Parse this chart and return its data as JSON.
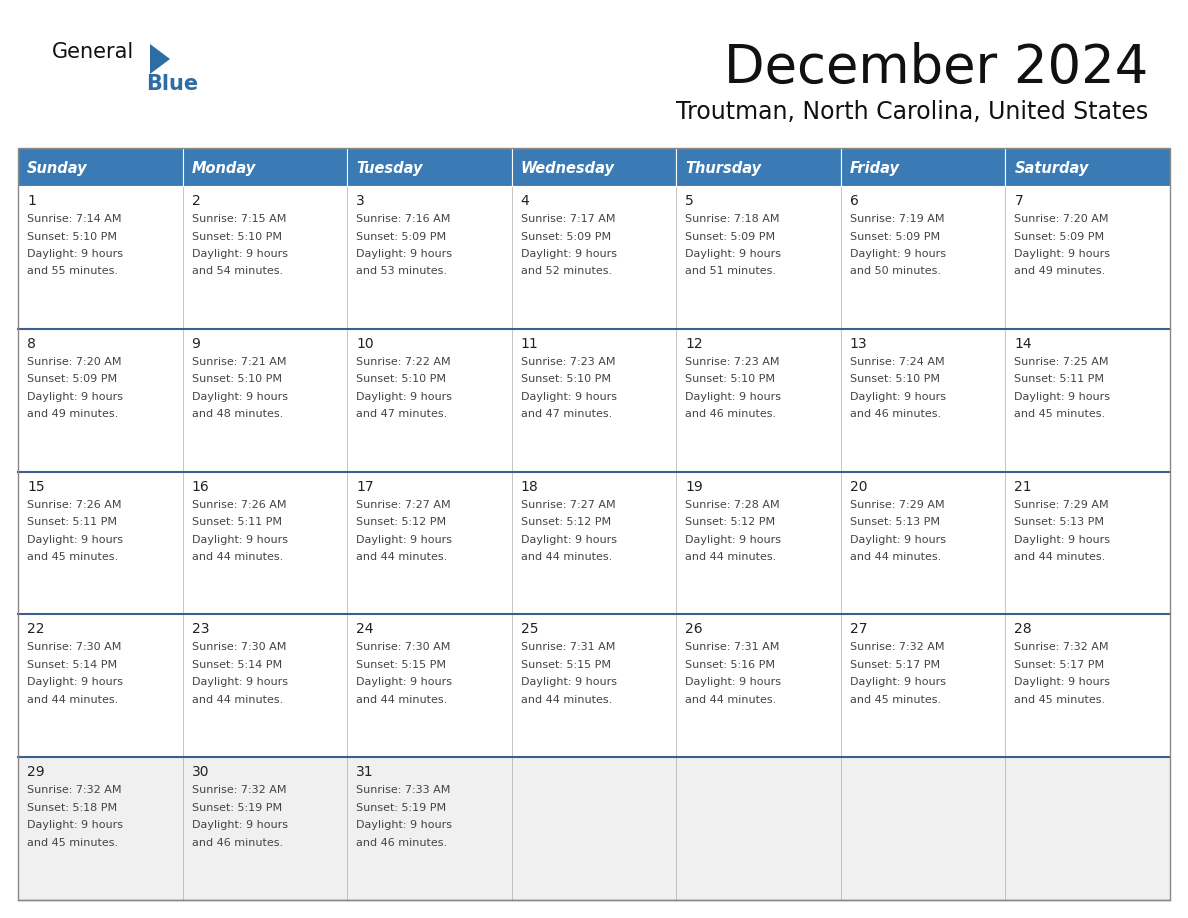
{
  "title": "December 2024",
  "subtitle": "Troutman, North Carolina, United States",
  "header_bg": "#3A7AB5",
  "header_text": "#FFFFFF",
  "day_names": [
    "Sunday",
    "Monday",
    "Tuesday",
    "Wednesday",
    "Thursday",
    "Friday",
    "Saturday"
  ],
  "row_bg": "#FFFFFF",
  "last_row_bg": "#F0F0F0",
  "cell_border": "#AAAAAA",
  "row_divider": "#3A6090",
  "outer_border": "#888888",
  "day_num_color": "#222222",
  "info_color": "#444444",
  "title_color": "#111111",
  "subtitle_color": "#111111",
  "logo_general_color": "#111111",
  "logo_blue_color": "#2E6DA4",
  "calendar_data": [
    [
      {
        "day": 1,
        "sunrise": "7:14 AM",
        "sunset": "5:10 PM",
        "daylight_hours": 9,
        "daylight_min": "55 minutes."
      },
      {
        "day": 2,
        "sunrise": "7:15 AM",
        "sunset": "5:10 PM",
        "daylight_hours": 9,
        "daylight_min": "54 minutes."
      },
      {
        "day": 3,
        "sunrise": "7:16 AM",
        "sunset": "5:09 PM",
        "daylight_hours": 9,
        "daylight_min": "53 minutes."
      },
      {
        "day": 4,
        "sunrise": "7:17 AM",
        "sunset": "5:09 PM",
        "daylight_hours": 9,
        "daylight_min": "52 minutes."
      },
      {
        "day": 5,
        "sunrise": "7:18 AM",
        "sunset": "5:09 PM",
        "daylight_hours": 9,
        "daylight_min": "51 minutes."
      },
      {
        "day": 6,
        "sunrise": "7:19 AM",
        "sunset": "5:09 PM",
        "daylight_hours": 9,
        "daylight_min": "50 minutes."
      },
      {
        "day": 7,
        "sunrise": "7:20 AM",
        "sunset": "5:09 PM",
        "daylight_hours": 9,
        "daylight_min": "49 minutes."
      }
    ],
    [
      {
        "day": 8,
        "sunrise": "7:20 AM",
        "sunset": "5:09 PM",
        "daylight_hours": 9,
        "daylight_min": "49 minutes."
      },
      {
        "day": 9,
        "sunrise": "7:21 AM",
        "sunset": "5:10 PM",
        "daylight_hours": 9,
        "daylight_min": "48 minutes."
      },
      {
        "day": 10,
        "sunrise": "7:22 AM",
        "sunset": "5:10 PM",
        "daylight_hours": 9,
        "daylight_min": "47 minutes."
      },
      {
        "day": 11,
        "sunrise": "7:23 AM",
        "sunset": "5:10 PM",
        "daylight_hours": 9,
        "daylight_min": "47 minutes."
      },
      {
        "day": 12,
        "sunrise": "7:23 AM",
        "sunset": "5:10 PM",
        "daylight_hours": 9,
        "daylight_min": "46 minutes."
      },
      {
        "day": 13,
        "sunrise": "7:24 AM",
        "sunset": "5:10 PM",
        "daylight_hours": 9,
        "daylight_min": "46 minutes."
      },
      {
        "day": 14,
        "sunrise": "7:25 AM",
        "sunset": "5:11 PM",
        "daylight_hours": 9,
        "daylight_min": "45 minutes."
      }
    ],
    [
      {
        "day": 15,
        "sunrise": "7:26 AM",
        "sunset": "5:11 PM",
        "daylight_hours": 9,
        "daylight_min": "45 minutes."
      },
      {
        "day": 16,
        "sunrise": "7:26 AM",
        "sunset": "5:11 PM",
        "daylight_hours": 9,
        "daylight_min": "44 minutes."
      },
      {
        "day": 17,
        "sunrise": "7:27 AM",
        "sunset": "5:12 PM",
        "daylight_hours": 9,
        "daylight_min": "44 minutes."
      },
      {
        "day": 18,
        "sunrise": "7:27 AM",
        "sunset": "5:12 PM",
        "daylight_hours": 9,
        "daylight_min": "44 minutes."
      },
      {
        "day": 19,
        "sunrise": "7:28 AM",
        "sunset": "5:12 PM",
        "daylight_hours": 9,
        "daylight_min": "44 minutes."
      },
      {
        "day": 20,
        "sunrise": "7:29 AM",
        "sunset": "5:13 PM",
        "daylight_hours": 9,
        "daylight_min": "44 minutes."
      },
      {
        "day": 21,
        "sunrise": "7:29 AM",
        "sunset": "5:13 PM",
        "daylight_hours": 9,
        "daylight_min": "44 minutes."
      }
    ],
    [
      {
        "day": 22,
        "sunrise": "7:30 AM",
        "sunset": "5:14 PM",
        "daylight_hours": 9,
        "daylight_min": "44 minutes."
      },
      {
        "day": 23,
        "sunrise": "7:30 AM",
        "sunset": "5:14 PM",
        "daylight_hours": 9,
        "daylight_min": "44 minutes."
      },
      {
        "day": 24,
        "sunrise": "7:30 AM",
        "sunset": "5:15 PM",
        "daylight_hours": 9,
        "daylight_min": "44 minutes."
      },
      {
        "day": 25,
        "sunrise": "7:31 AM",
        "sunset": "5:15 PM",
        "daylight_hours": 9,
        "daylight_min": "44 minutes."
      },
      {
        "day": 26,
        "sunrise": "7:31 AM",
        "sunset": "5:16 PM",
        "daylight_hours": 9,
        "daylight_min": "44 minutes."
      },
      {
        "day": 27,
        "sunrise": "7:32 AM",
        "sunset": "5:17 PM",
        "daylight_hours": 9,
        "daylight_min": "45 minutes."
      },
      {
        "day": 28,
        "sunrise": "7:32 AM",
        "sunset": "5:17 PM",
        "daylight_hours": 9,
        "daylight_min": "45 minutes."
      }
    ],
    [
      {
        "day": 29,
        "sunrise": "7:32 AM",
        "sunset": "5:18 PM",
        "daylight_hours": 9,
        "daylight_min": "45 minutes."
      },
      {
        "day": 30,
        "sunrise": "7:32 AM",
        "sunset": "5:19 PM",
        "daylight_hours": 9,
        "daylight_min": "46 minutes."
      },
      {
        "day": 31,
        "sunrise": "7:33 AM",
        "sunset": "5:19 PM",
        "daylight_hours": 9,
        "daylight_min": "46 minutes."
      },
      null,
      null,
      null,
      null
    ]
  ]
}
